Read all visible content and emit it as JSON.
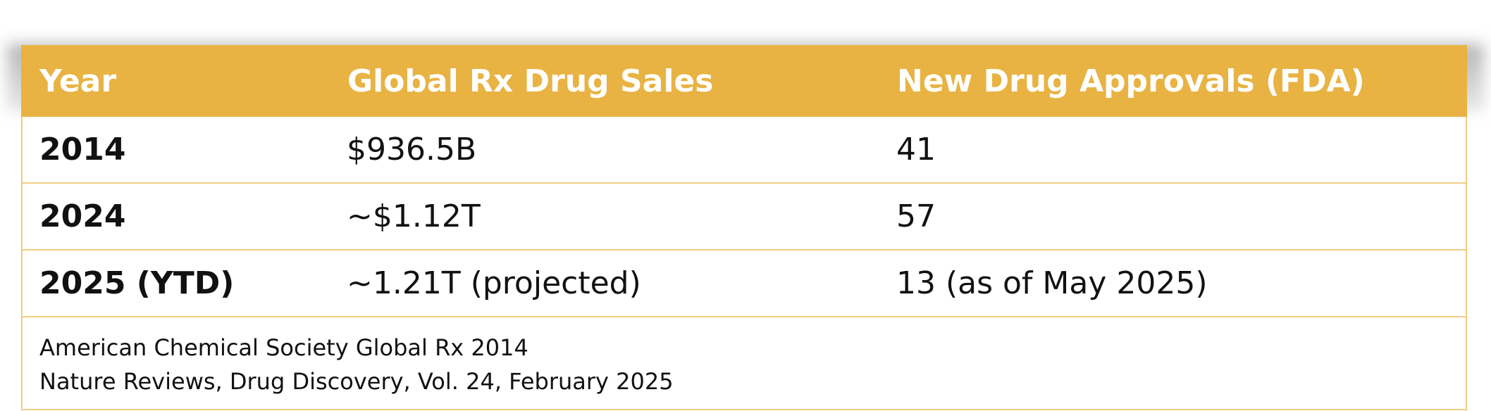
{
  "table": {
    "headers": [
      "Year",
      "Global Rx Drug Sales",
      "New Drug Approvals (FDA)"
    ],
    "rows": [
      [
        "2014",
        "$936.5B",
        "41"
      ],
      [
        "2024",
        "~$1.12T",
        "57"
      ],
      [
        "2025 (YTD)",
        "~1.21T (projected)",
        "13 (as of May 2025)"
      ]
    ],
    "sources": [
      "American Chemical Society Global Rx 2014",
      "Nature Reviews, Drug Discovery, Vol. 24, February 2025"
    ]
  },
  "colors": {
    "header_background": "#e8b342",
    "header_text": "#ffffff",
    "border": "#f0cc82",
    "body_text": "#111111"
  }
}
